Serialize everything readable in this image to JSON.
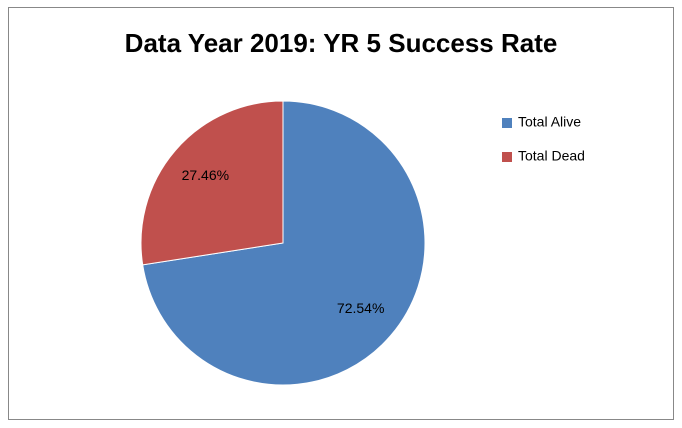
{
  "chart_data": {
    "type": "pie",
    "title": "Data Year 2019: YR 5 Success Rate",
    "categories": [
      "Total Alive",
      "Total Dead"
    ],
    "values": [
      72.54,
      27.46
    ],
    "value_labels": [
      "72.54%",
      "27.46%"
    ],
    "colors": [
      "#4f81bd",
      "#c0504d"
    ],
    "legend": "right"
  }
}
